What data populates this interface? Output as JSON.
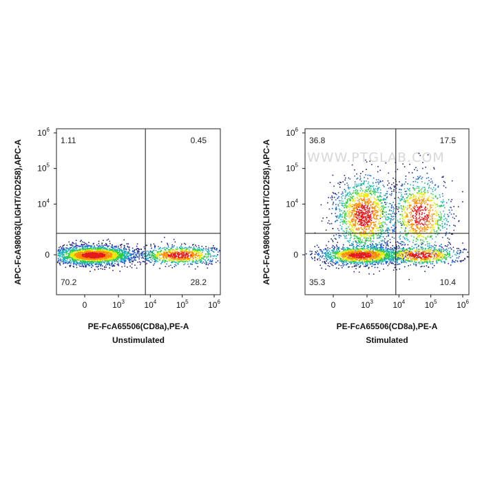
{
  "watermark": "WWW.PTGLAB.COM",
  "chart_data": [
    {
      "type": "scatter",
      "title": "Unstimulated",
      "xlabel": "PE-FcA65506(CD8a),PE-A",
      "ylabel": "APC-FcA98063(LIGHT/CD258),APC-A",
      "x_ticks": [
        {
          "base": "0",
          "exp": ""
        },
        {
          "base": "10",
          "exp": "3"
        },
        {
          "base": "10",
          "exp": "4"
        },
        {
          "base": "10",
          "exp": "5"
        },
        {
          "base": "10",
          "exp": "6"
        }
      ],
      "y_ticks": [
        {
          "base": "0",
          "exp": ""
        },
        {
          "base": "10",
          "exp": "4"
        },
        {
          "base": "10",
          "exp": "5"
        },
        {
          "base": "10",
          "exp": "6"
        }
      ],
      "quadrant_gate": {
        "x": 7000,
        "y": 1500
      },
      "quadrants": {
        "upper_left": "1.11",
        "upper_right": "0.45",
        "lower_left": "70.2",
        "lower_right": "28.2"
      },
      "populations": [
        {
          "x_center": 250,
          "y_center": 0,
          "n": 2300
        },
        {
          "x_center": 80000,
          "y_center": 0,
          "n": 900
        }
      ]
    },
    {
      "type": "scatter",
      "title": "Stimulated",
      "xlabel": "PE-FcA65506(CD8a),PE-A",
      "ylabel": "APC-FcA98063(LIGHT/CD258),APC-A",
      "x_ticks": [
        {
          "base": "0",
          "exp": ""
        },
        {
          "base": "10",
          "exp": "3"
        },
        {
          "base": "10",
          "exp": "4"
        },
        {
          "base": "10",
          "exp": "5"
        },
        {
          "base": "10",
          "exp": "6"
        }
      ],
      "y_ticks": [
        {
          "base": "0",
          "exp": ""
        },
        {
          "base": "10",
          "exp": "4"
        },
        {
          "base": "10",
          "exp": "5"
        },
        {
          "base": "10",
          "exp": "6"
        }
      ],
      "quadrant_gate": {
        "x": 8000,
        "y": 1500
      },
      "quadrants": {
        "upper_left": "36.8",
        "upper_right": "17.5",
        "lower_left": "35.3",
        "lower_right": "10.4"
      },
      "populations": [
        {
          "x_center": 800,
          "y_center": 0,
          "n": 1500
        },
        {
          "x_center": 900,
          "y_center": 5000,
          "n": 1400
        },
        {
          "x_center": 45000,
          "y_center": 5000,
          "n": 900
        },
        {
          "x_center": 45000,
          "y_center": 0,
          "n": 700
        }
      ]
    }
  ]
}
